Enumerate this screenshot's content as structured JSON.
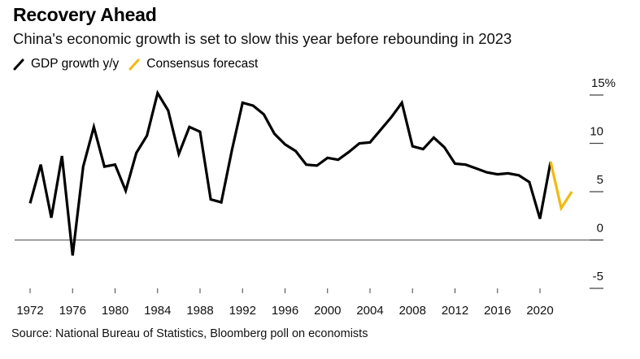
{
  "title": "Recovery Ahead",
  "subtitle": "China's economic growth is set to slow this year before rebounding in 2023",
  "legend": [
    {
      "label": "GDP growth y/y",
      "color": "#000000"
    },
    {
      "label": "Consensus forecast",
      "color": "#f2b90f"
    }
  ],
  "source": "Source: National Bureau of Statistics, Bloomberg poll on economists",
  "chart_data": {
    "type": "line",
    "title": "Recovery Ahead",
    "subtitle": "China's economic growth is set to slow this year before rebounding in 2023",
    "xlabel": "",
    "ylabel": "",
    "xlim": [
      1971,
      2024
    ],
    "ylim": [
      -5,
      15
    ],
    "x_ticks": [
      1972,
      1976,
      1980,
      1984,
      1988,
      1992,
      1996,
      2000,
      2004,
      2008,
      2012,
      2016,
      2020
    ],
    "y_ticks": [
      {
        "value": 15,
        "label": "15%"
      },
      {
        "value": 10,
        "label": "10"
      },
      {
        "value": 5,
        "label": "5"
      },
      {
        "value": 0,
        "label": "0"
      },
      {
        "value": -5,
        "label": "-5"
      }
    ],
    "y_axis_side": "right",
    "zero_line": true,
    "grid": false,
    "legend_position": "top-left",
    "series": [
      {
        "name": "GDP growth y/y",
        "color": "#000000",
        "x": [
          1972,
          1973,
          1974,
          1975,
          1976,
          1977,
          1978,
          1979,
          1980,
          1981,
          1982,
          1983,
          1984,
          1985,
          1986,
          1987,
          1988,
          1989,
          1990,
          1991,
          1992,
          1993,
          1994,
          1995,
          1996,
          1997,
          1998,
          1999,
          2000,
          2001,
          2002,
          2003,
          2004,
          2005,
          2006,
          2007,
          2008,
          2009,
          2010,
          2011,
          2012,
          2013,
          2014,
          2015,
          2016,
          2017,
          2018,
          2019,
          2020,
          2021
        ],
        "values": [
          3.8,
          7.8,
          2.3,
          8.7,
          -1.6,
          7.6,
          11.7,
          7.6,
          7.8,
          5.1,
          9.0,
          10.8,
          15.2,
          13.4,
          8.9,
          11.7,
          11.2,
          4.2,
          3.9,
          9.3,
          14.2,
          13.9,
          13.0,
          11.0,
          9.9,
          9.2,
          7.8,
          7.7,
          8.5,
          8.3,
          9.1,
          10.0,
          10.1,
          11.4,
          12.7,
          14.2,
          9.7,
          9.4,
          10.6,
          9.6,
          7.9,
          7.8,
          7.4,
          7.0,
          6.8,
          6.9,
          6.7,
          6.0,
          2.2,
          8.1
        ]
      },
      {
        "name": "Consensus forecast",
        "color": "#f2b90f",
        "x": [
          2021,
          2022,
          2023
        ],
        "values": [
          8.1,
          3.3,
          5.0
        ]
      }
    ]
  }
}
